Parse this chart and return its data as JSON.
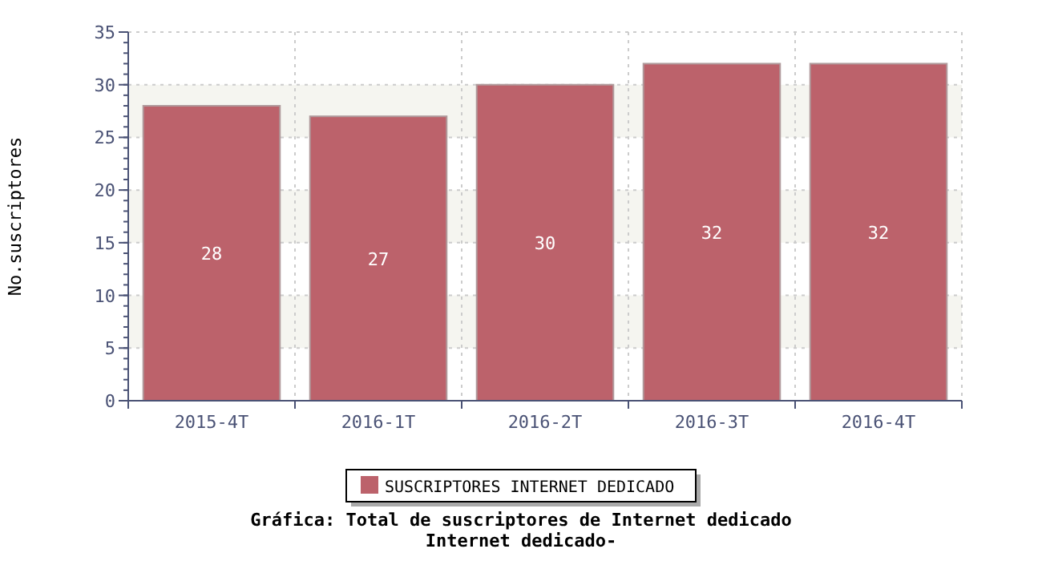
{
  "chart_data": {
    "type": "bar",
    "title": "Gráfica: Total de suscriptores de Internet dedicado",
    "subtitle": "Internet dedicado-",
    "ylabel": "No.suscriptores",
    "categories": [
      "2015-4T",
      "2016-1T",
      "2016-2T",
      "2016-3T",
      "2016-4T"
    ],
    "series": [
      {
        "name": "SUSCRIPTORES INTERNET DEDICADO",
        "color": "#bc626b",
        "values": [
          28,
          27,
          30,
          32,
          32
        ]
      }
    ],
    "ylim": [
      0,
      35
    ],
    "yticks": [
      0,
      5,
      10,
      15,
      20,
      25,
      30,
      35
    ],
    "grid": true,
    "legend": "bottom",
    "data_labels": true
  }
}
